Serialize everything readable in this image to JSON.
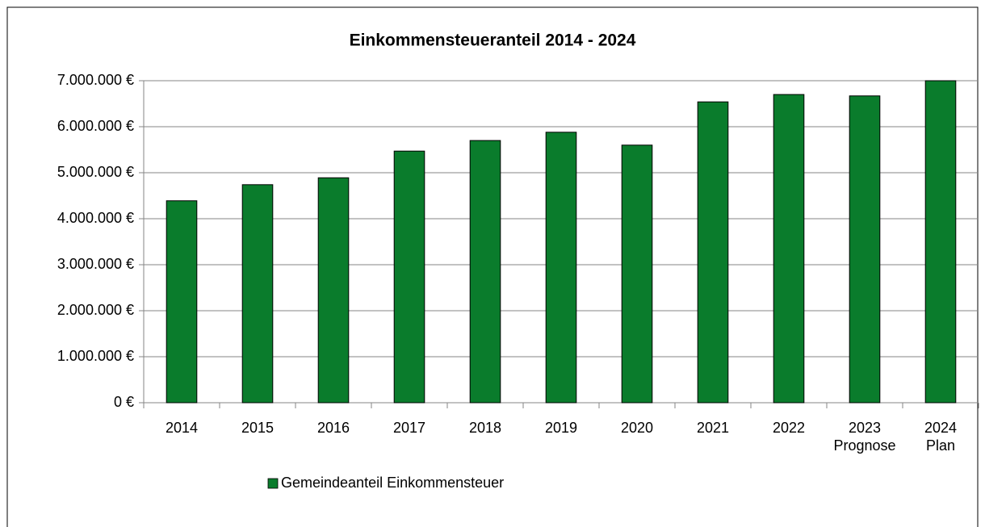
{
  "chart_data": {
    "type": "bar",
    "title": "Einkommensteueranteil 2014 - 2024",
    "categories": [
      "2014",
      "2015",
      "2016",
      "2017",
      "2018",
      "2019",
      "2020",
      "2021",
      "2022",
      "2023\nPrognose",
      "2024\nPlan"
    ],
    "series": [
      {
        "name": "Gemeindeanteil Einkommensteuer",
        "color": "#0a7c2c",
        "values": [
          4390000,
          4740000,
          4890000,
          5470000,
          5700000,
          5880000,
          5600000,
          6540000,
          6700000,
          6670000,
          7000000
        ]
      }
    ],
    "ylim": [
      0,
      7000000
    ],
    "yticks": [
      {
        "value": 0,
        "label": "0 €"
      },
      {
        "value": 1000000,
        "label": "1.000.000 €"
      },
      {
        "value": 2000000,
        "label": "2.000.000 €"
      },
      {
        "value": 3000000,
        "label": "3.000.000 €"
      },
      {
        "value": 4000000,
        "label": "4.000.000 €"
      },
      {
        "value": 5000000,
        "label": "5.000.000 €"
      },
      {
        "value": 6000000,
        "label": "6.000.000 €"
      },
      {
        "value": 7000000,
        "label": "7.000.000 €"
      }
    ],
    "grid": true,
    "legend": "bottom"
  }
}
